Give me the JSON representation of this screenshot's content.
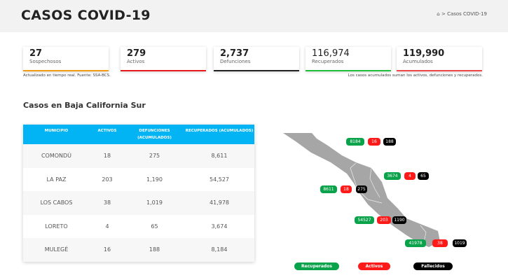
{
  "header": {
    "title": "CASOS COVID-19",
    "breadcrumb_home_icon": "home-icon",
    "breadcrumb_separator": ">",
    "breadcrumb_current": "Casos COVID-19"
  },
  "cards": [
    {
      "value": "27",
      "label": "Sospechosos",
      "color": "#f39c12"
    },
    {
      "value": "279",
      "label": "Activos",
      "color": "#e51b1b"
    },
    {
      "value": "2,737",
      "label": "Defunciones",
      "color": "#222222"
    },
    {
      "value": "116,974",
      "label": "Recuperados",
      "color": "#1fbf3a"
    },
    {
      "value": "119,990",
      "label": "Acumulados",
      "color": "#f04848"
    }
  ],
  "note_left": "Actualizado en tiempo real. Fuente: SSA-BCS.",
  "note_right": "Los casos acumulados suman los activos, defunciones y recuperados.",
  "section_title": "Casos en Baja California Sur",
  "table": {
    "headers": [
      "MUNICIPIO",
      "ACTIVOS",
      "DEFUNCIONES (ACUMULADOS)",
      "RECUPERADOS (ACUMULADOS)"
    ],
    "rows": [
      [
        "COMONDÚ",
        "18",
        "275",
        "8,611"
      ],
      [
        "LA PAZ",
        "203",
        "1,190",
        "54,527"
      ],
      [
        "LOS CABOS",
        "38",
        "1,019",
        "41,978"
      ],
      [
        "LORETO",
        "4",
        "65",
        "3,674"
      ],
      [
        "MULEGÉ",
        "16",
        "188",
        "8,184"
      ]
    ]
  },
  "map": {
    "badges": [
      {
        "municipio": "MULEGÉ",
        "recuperados": "8184",
        "activos": "16",
        "fallecidos": "188"
      },
      {
        "municipio": "LORETO",
        "recuperados": "3674",
        "activos": "4",
        "fallecidos": "65"
      },
      {
        "municipio": "COMONDÚ",
        "recuperados": "8611",
        "activos": "18",
        "fallecidos": "275"
      },
      {
        "municipio": "LA PAZ",
        "recuperados": "54527",
        "activos": "203",
        "fallecidos": "1190"
      },
      {
        "municipio": "LOS CABOS",
        "recuperados": "41978",
        "activos": "38",
        "fallecidos": "1019"
      }
    ],
    "legend": [
      "Recuperados",
      "Activos",
      "Fallecidos"
    ],
    "colors": {
      "recuperados": "#0aa24a",
      "activos": "#ff1a1a",
      "fallecidos": "#000000",
      "land": "#a6a6a6"
    }
  }
}
